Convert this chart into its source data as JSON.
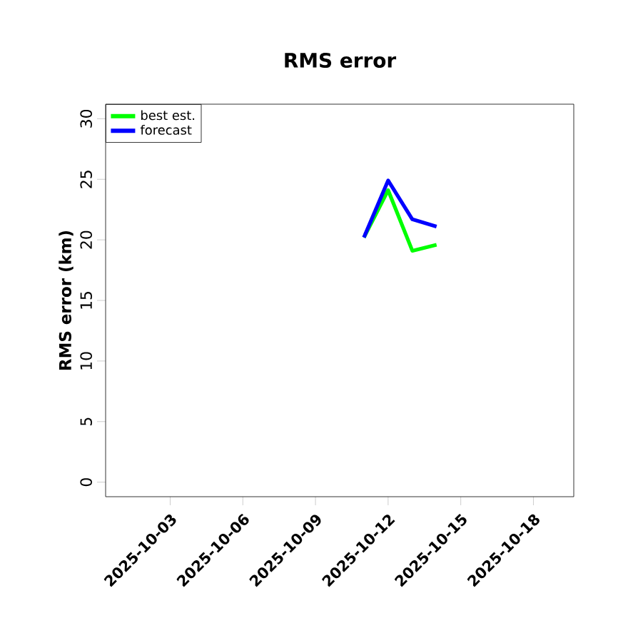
{
  "chart_data": {
    "type": "line",
    "title": "RMS error",
    "ylabel": "RMS error (km)",
    "xlim": [
      "2025-09-30T08:00",
      "2025-10-19T16:00"
    ],
    "xticks": [
      "2025-10-03",
      "2025-10-06",
      "2025-10-09",
      "2025-10-12",
      "2025-10-15",
      "2025-10-18"
    ],
    "ylim": [
      -1.2,
      31.2
    ],
    "yticks": [
      0,
      5,
      10,
      15,
      20,
      25,
      30
    ],
    "legend": "top left",
    "series": [
      {
        "name": "best est.",
        "color": "#00ff00",
        "x": [
          "2025-10-11",
          "2025-10-12",
          "2025-10-13",
          "2025-10-14"
        ],
        "values": [
          20.2,
          24.1,
          19.1,
          19.6
        ]
      },
      {
        "name": "forecast",
        "color": "#0000ff",
        "x": [
          "2025-10-11",
          "2025-10-12",
          "2025-10-13",
          "2025-10-14"
        ],
        "values": [
          20.2,
          24.9,
          21.7,
          21.1
        ]
      }
    ]
  }
}
